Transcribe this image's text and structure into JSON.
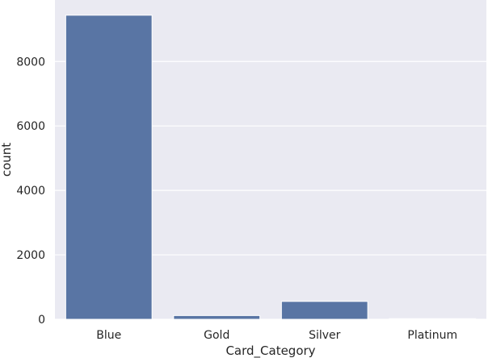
{
  "chart_data": {
    "type": "bar",
    "xlabel": "Card_Category",
    "ylabel": "count",
    "categories": [
      "Blue",
      "Gold",
      "Silver",
      "Platinum"
    ],
    "values": [
      9436,
      116,
      555,
      20
    ],
    "yticks": [
      0,
      2000,
      4000,
      6000,
      8000
    ],
    "ylim": [
      0,
      9908
    ],
    "grid": true,
    "colors": {
      "bar": "#5975a4",
      "background": "#eaeaf2",
      "grid": "#ffffff"
    }
  }
}
